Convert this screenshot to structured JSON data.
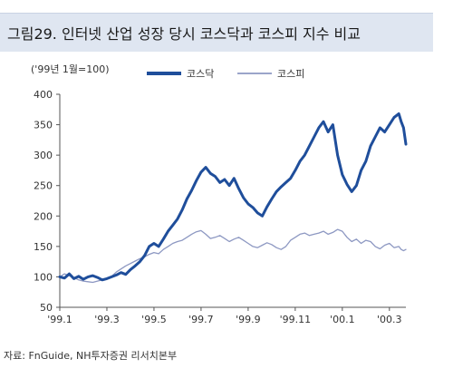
{
  "title": "그림29. 인터넷 산업 성장 당시 코스닥과 코스피 지수 비교",
  "source": "자료: FnGuide, NH투자증권 리서치본부",
  "chart_data": {
    "type": "line",
    "unit_label": "('99년 1월=100)",
    "ylim": [
      50,
      400
    ],
    "yticks": [
      50,
      100,
      150,
      200,
      250,
      300,
      350,
      400
    ],
    "xlim": [
      0,
      14.7
    ],
    "xticks": [
      {
        "x": 0,
        "label": "'99.1"
      },
      {
        "x": 2,
        "label": "'99.3"
      },
      {
        "x": 4,
        "label": "'99.5"
      },
      {
        "x": 6,
        "label": "'99.7"
      },
      {
        "x": 8,
        "label": "'99.9"
      },
      {
        "x": 10,
        "label": "'99.11"
      },
      {
        "x": 12,
        "label": "'00.1"
      },
      {
        "x": 14,
        "label": "'00.3"
      }
    ],
    "legend_position": "top-center",
    "series": [
      {
        "name": "코스닥",
        "color": "#1f4e9b",
        "width": 3,
        "points": [
          [
            0.0,
            100
          ],
          [
            0.2,
            98
          ],
          [
            0.4,
            105
          ],
          [
            0.6,
            97
          ],
          [
            0.8,
            101
          ],
          [
            1.0,
            96
          ],
          [
            1.2,
            100
          ],
          [
            1.4,
            102
          ],
          [
            1.6,
            99
          ],
          [
            1.8,
            95
          ],
          [
            2.0,
            97
          ],
          [
            2.2,
            100
          ],
          [
            2.4,
            103
          ],
          [
            2.6,
            107
          ],
          [
            2.8,
            104
          ],
          [
            3.0,
            112
          ],
          [
            3.2,
            118
          ],
          [
            3.4,
            125
          ],
          [
            3.6,
            135
          ],
          [
            3.8,
            150
          ],
          [
            4.0,
            155
          ],
          [
            4.2,
            150
          ],
          [
            4.4,
            162
          ],
          [
            4.6,
            175
          ],
          [
            4.8,
            185
          ],
          [
            5.0,
            195
          ],
          [
            5.2,
            210
          ],
          [
            5.4,
            228
          ],
          [
            5.6,
            242
          ],
          [
            5.8,
            258
          ],
          [
            6.0,
            272
          ],
          [
            6.2,
            280
          ],
          [
            6.4,
            270
          ],
          [
            6.6,
            265
          ],
          [
            6.8,
            255
          ],
          [
            7.0,
            260
          ],
          [
            7.2,
            250
          ],
          [
            7.4,
            262
          ],
          [
            7.6,
            245
          ],
          [
            7.8,
            230
          ],
          [
            8.0,
            220
          ],
          [
            8.2,
            214
          ],
          [
            8.4,
            205
          ],
          [
            8.6,
            200
          ],
          [
            8.8,
            215
          ],
          [
            9.0,
            228
          ],
          [
            9.2,
            240
          ],
          [
            9.4,
            248
          ],
          [
            9.6,
            255
          ],
          [
            9.8,
            262
          ],
          [
            10.0,
            275
          ],
          [
            10.2,
            290
          ],
          [
            10.4,
            300
          ],
          [
            10.6,
            315
          ],
          [
            10.8,
            330
          ],
          [
            11.0,
            345
          ],
          [
            11.2,
            355
          ],
          [
            11.4,
            338
          ],
          [
            11.6,
            350
          ],
          [
            11.8,
            300
          ],
          [
            12.0,
            268
          ],
          [
            12.2,
            252
          ],
          [
            12.4,
            240
          ],
          [
            12.6,
            250
          ],
          [
            12.8,
            275
          ],
          [
            13.0,
            290
          ],
          [
            13.2,
            315
          ],
          [
            13.4,
            330
          ],
          [
            13.6,
            345
          ],
          [
            13.8,
            338
          ],
          [
            14.0,
            350
          ],
          [
            14.2,
            362
          ],
          [
            14.4,
            368
          ],
          [
            14.5,
            355
          ],
          [
            14.6,
            345
          ],
          [
            14.7,
            318
          ]
        ]
      },
      {
        "name": "코스피",
        "color": "#8d98c2",
        "width": 1.3,
        "points": [
          [
            0.0,
            100
          ],
          [
            0.2,
            105
          ],
          [
            0.4,
            102
          ],
          [
            0.6,
            99
          ],
          [
            0.8,
            95
          ],
          [
            1.0,
            93
          ],
          [
            1.2,
            92
          ],
          [
            1.4,
            91
          ],
          [
            1.6,
            93
          ],
          [
            1.8,
            95
          ],
          [
            2.0,
            98
          ],
          [
            2.2,
            101
          ],
          [
            2.4,
            108
          ],
          [
            2.6,
            113
          ],
          [
            2.8,
            118
          ],
          [
            3.0,
            122
          ],
          [
            3.2,
            126
          ],
          [
            3.4,
            130
          ],
          [
            3.6,
            133
          ],
          [
            3.8,
            137
          ],
          [
            4.0,
            140
          ],
          [
            4.2,
            138
          ],
          [
            4.4,
            145
          ],
          [
            4.6,
            150
          ],
          [
            4.8,
            155
          ],
          [
            5.0,
            158
          ],
          [
            5.2,
            160
          ],
          [
            5.4,
            165
          ],
          [
            5.6,
            170
          ],
          [
            5.8,
            174
          ],
          [
            6.0,
            176
          ],
          [
            6.2,
            170
          ],
          [
            6.4,
            163
          ],
          [
            6.6,
            165
          ],
          [
            6.8,
            168
          ],
          [
            7.0,
            163
          ],
          [
            7.2,
            158
          ],
          [
            7.4,
            162
          ],
          [
            7.6,
            165
          ],
          [
            7.8,
            160
          ],
          [
            8.0,
            155
          ],
          [
            8.2,
            150
          ],
          [
            8.4,
            148
          ],
          [
            8.6,
            152
          ],
          [
            8.8,
            156
          ],
          [
            9.0,
            153
          ],
          [
            9.2,
            148
          ],
          [
            9.4,
            145
          ],
          [
            9.6,
            150
          ],
          [
            9.8,
            160
          ],
          [
            10.0,
            165
          ],
          [
            10.2,
            170
          ],
          [
            10.4,
            172
          ],
          [
            10.6,
            168
          ],
          [
            10.8,
            170
          ],
          [
            11.0,
            172
          ],
          [
            11.2,
            175
          ],
          [
            11.4,
            170
          ],
          [
            11.6,
            173
          ],
          [
            11.8,
            178
          ],
          [
            12.0,
            175
          ],
          [
            12.2,
            165
          ],
          [
            12.4,
            158
          ],
          [
            12.6,
            162
          ],
          [
            12.8,
            155
          ],
          [
            13.0,
            160
          ],
          [
            13.2,
            158
          ],
          [
            13.4,
            150
          ],
          [
            13.6,
            146
          ],
          [
            13.8,
            152
          ],
          [
            14.0,
            155
          ],
          [
            14.2,
            148
          ],
          [
            14.4,
            150
          ],
          [
            14.5,
            145
          ],
          [
            14.6,
            143
          ],
          [
            14.7,
            145
          ]
        ]
      }
    ]
  }
}
